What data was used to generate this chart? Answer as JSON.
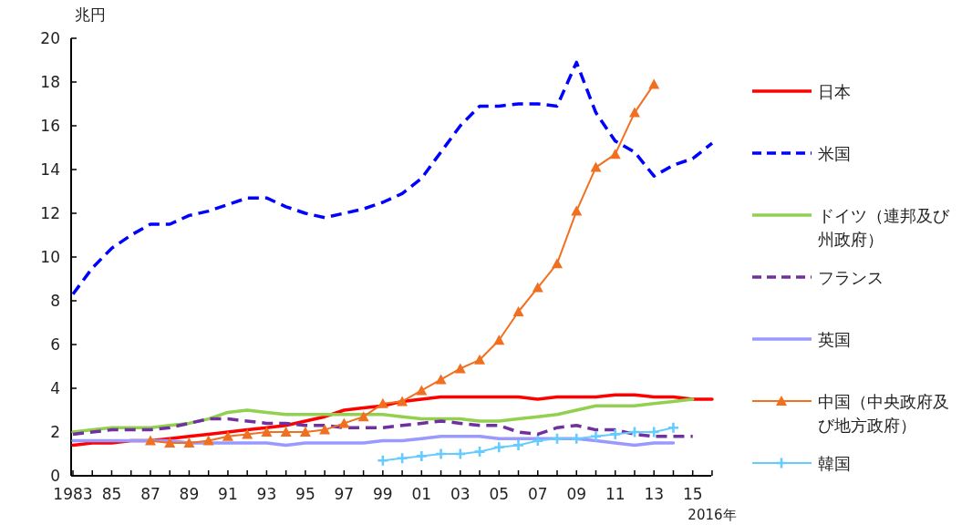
{
  "chart_data": {
    "type": "line",
    "ylabel": "兆円",
    "categories": [
      "1983",
      null,
      "85",
      null,
      "87",
      null,
      "89",
      null,
      "91",
      null,
      "93",
      null,
      "95",
      null,
      "97",
      null,
      "99",
      null,
      "01",
      null,
      "03",
      null,
      "05",
      null,
      "07",
      null,
      "09",
      null,
      "11",
      null,
      "13",
      null,
      "15",
      "2016年"
    ],
    "ylim": [
      0,
      20
    ],
    "yticks": [
      0,
      2,
      4,
      6,
      8,
      10,
      12,
      14,
      16,
      18,
      20
    ],
    "grid": false,
    "legend": "right",
    "series": [
      {
        "name": "日本",
        "color": "#ff0000",
        "line_style": "solid",
        "marker": "none",
        "values": [
          1.4,
          1.5,
          1.5,
          1.6,
          1.6,
          1.7,
          1.8,
          1.9,
          2.0,
          2.1,
          2.2,
          2.3,
          2.5,
          2.7,
          3.0,
          3.1,
          3.2,
          3.4,
          3.5,
          3.6,
          3.6,
          3.6,
          3.6,
          3.6,
          3.5,
          3.6,
          3.6,
          3.6,
          3.7,
          3.7,
          3.6,
          3.6,
          3.5,
          3.5
        ]
      },
      {
        "name": "米国",
        "color": "#0000ff",
        "line_style": "dashed",
        "marker": "none",
        "values": [
          8.3,
          9.5,
          10.4,
          11.0,
          11.5,
          11.5,
          11.9,
          12.1,
          12.4,
          12.7,
          12.7,
          12.3,
          12.0,
          11.8,
          12.0,
          12.2,
          12.5,
          12.9,
          13.6,
          14.8,
          16.0,
          16.9,
          16.9,
          17.0,
          17.0,
          16.9,
          18.9,
          16.6,
          15.3,
          14.8,
          13.7,
          14.2,
          14.5,
          15.2
        ]
      },
      {
        "name": "ドイツ（連邦及び州政府）",
        "color": "#92d050",
        "line_style": "solid",
        "marker": "none",
        "values": [
          2.0,
          2.1,
          2.2,
          2.2,
          2.2,
          2.3,
          2.4,
          2.6,
          2.9,
          3.0,
          2.9,
          2.8,
          2.8,
          2.8,
          2.8,
          2.8,
          2.8,
          2.7,
          2.6,
          2.6,
          2.6,
          2.5,
          2.5,
          2.6,
          2.7,
          2.8,
          3.0,
          3.2,
          3.2,
          3.2,
          3.3,
          3.4,
          3.5,
          null
        ]
      },
      {
        "name": "フランス",
        "color": "#7030a0",
        "line_style": "dashed",
        "marker": "none",
        "values": [
          1.9,
          2.0,
          2.1,
          2.1,
          2.1,
          2.2,
          2.4,
          2.6,
          2.6,
          2.5,
          2.4,
          2.4,
          2.3,
          2.3,
          2.2,
          2.2,
          2.2,
          2.3,
          2.4,
          2.5,
          2.4,
          2.3,
          2.3,
          2.0,
          1.9,
          2.2,
          2.3,
          2.1,
          2.1,
          1.9,
          1.8,
          1.8,
          1.8,
          null
        ]
      },
      {
        "name": "英国",
        "color": "#9999ff",
        "line_style": "solid",
        "marker": "none",
        "values": [
          1.6,
          1.6,
          1.6,
          1.6,
          1.6,
          1.6,
          1.5,
          1.5,
          1.5,
          1.5,
          1.5,
          1.4,
          1.5,
          1.5,
          1.5,
          1.5,
          1.6,
          1.6,
          1.7,
          1.8,
          1.8,
          1.8,
          1.7,
          1.7,
          1.7,
          1.7,
          1.7,
          1.6,
          1.5,
          1.4,
          1.5,
          1.5,
          null,
          null
        ]
      },
      {
        "name": "中国（中央政府及び地方政府）",
        "color": "#f07020",
        "line_style": "solid",
        "marker": "triangle",
        "values": [
          null,
          null,
          null,
          null,
          1.6,
          1.5,
          1.5,
          1.6,
          1.8,
          1.9,
          2.0,
          2.0,
          2.0,
          2.1,
          2.4,
          2.7,
          3.3,
          3.4,
          3.9,
          4.4,
          4.9,
          5.3,
          6.2,
          7.5,
          8.6,
          9.7,
          12.1,
          14.1,
          14.7,
          16.6,
          17.9,
          null,
          null,
          null
        ]
      },
      {
        "name": "韓国",
        "color": "#66ccff",
        "line_style": "solid",
        "marker": "cross",
        "values": [
          null,
          null,
          null,
          null,
          null,
          null,
          null,
          null,
          null,
          null,
          null,
          null,
          null,
          null,
          null,
          null,
          0.7,
          0.8,
          0.9,
          1.0,
          1.0,
          1.1,
          1.3,
          1.4,
          1.6,
          1.7,
          1.7,
          1.8,
          1.9,
          2.0,
          2.0,
          2.2,
          null,
          null
        ]
      }
    ]
  }
}
